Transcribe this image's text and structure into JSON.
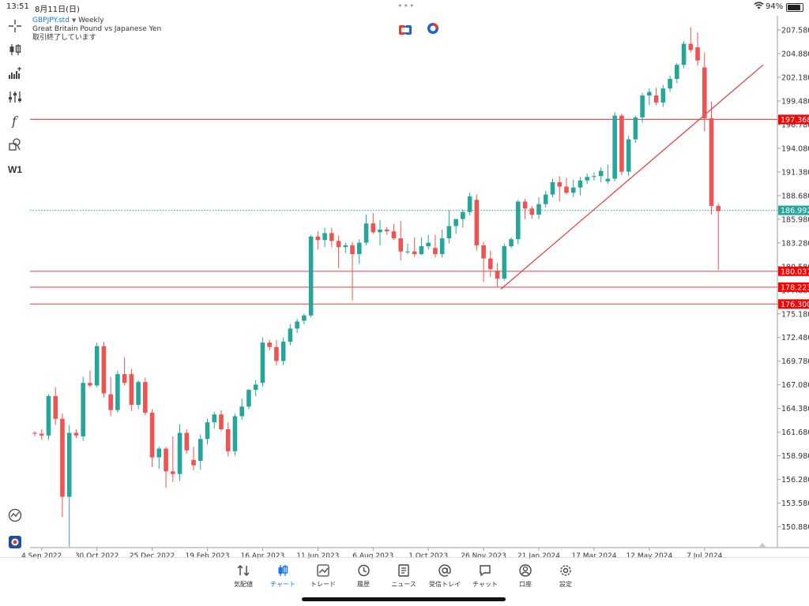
{
  "status_bar": {
    "time": "13:51",
    "date": "8月11日(日)",
    "battery": "94%",
    "battery_level": 0.94
  },
  "symbol": {
    "name": "GBPJPY.std",
    "timeframe": "Weekly",
    "description": "Great Britain Pound vs Japanese Yen",
    "market_status": "取引終了しています"
  },
  "toolbar": {
    "items": [
      {
        "name": "crosshair-icon"
      },
      {
        "name": "chart-type-icon"
      },
      {
        "name": "indicators-icon"
      },
      {
        "name": "settings-sliders-icon"
      },
      {
        "name": "function-icon"
      },
      {
        "name": "objects-icon"
      }
    ],
    "timeframe_label": "W1"
  },
  "colors": {
    "bull": "#26a69a",
    "bear": "#ef5350",
    "hline": "#f05050",
    "trendline": "#e53935",
    "price_line": "#26a69a",
    "accent": "#1a73e8",
    "price_label_bg": "#ff0000"
  },
  "chart_data": {
    "type": "candlestick",
    "ylim": [
      148.5,
      209.2
    ],
    "y_ticks": [
      "207.580",
      "204.880",
      "202.180",
      "199.480",
      "196.780",
      "194.080",
      "191.380",
      "188.680",
      "185.980",
      "183.280",
      "180.580",
      "177.880",
      "175.180",
      "172.480",
      "169.780",
      "167.080",
      "164.380",
      "161.680",
      "158.980",
      "156.280",
      "153.580",
      "150.880"
    ],
    "y_tick_values": [
      207.58,
      204.88,
      202.18,
      199.48,
      196.78,
      194.08,
      191.38,
      188.68,
      185.98,
      183.28,
      180.58,
      177.88,
      175.18,
      172.48,
      169.78,
      167.08,
      164.38,
      161.68,
      158.98,
      156.28,
      153.58,
      150.88
    ],
    "x_ticks": [
      "4 Sep 2022",
      "30 Oct 2022",
      "25 Dec 2022",
      "19 Feb 2023",
      "16 Apr 2023",
      "11 Jun 2023",
      "6 Aug 2023",
      "1 Oct 2023",
      "26 Nov 2023",
      "21 Jan 2024",
      "17 Mar 2024",
      "12 May 2024",
      "7 Jul 2024"
    ],
    "x_tick_index": [
      1,
      9,
      17,
      25,
      33,
      41,
      49,
      57,
      65,
      73,
      81,
      89,
      97
    ],
    "current_price": "186.992",
    "current_price_value": 186.992,
    "horizontal_lines": [
      {
        "label": "197.368",
        "value": 197.368
      },
      {
        "label": "180.037",
        "value": 180.037
      },
      {
        "label": "178.223",
        "value": 178.223
      },
      {
        "label": "176.300",
        "value": 176.3
      }
    ],
    "trendline": {
      "from": {
        "index": 67.5,
        "value": 178.0
      },
      "to": {
        "index": 105.5,
        "value": 203.6
      }
    },
    "candles": [
      [
        161.6,
        161.8,
        161.2,
        161.5
      ],
      [
        161.5,
        162.0,
        160.8,
        161.3
      ],
      [
        161.3,
        166.0,
        160.8,
        165.8
      ],
      [
        165.8,
        166.8,
        162.5,
        163.2
      ],
      [
        163.2,
        163.8,
        152.0,
        154.3
      ],
      [
        154.3,
        162.5,
        148.6,
        161.6
      ],
      [
        161.6,
        162.0,
        161.0,
        161.3
      ],
      [
        161.2,
        168.0,
        160.7,
        167.3
      ],
      [
        167.3,
        168.7,
        166.8,
        167.0
      ],
      [
        167.0,
        171.9,
        166.8,
        171.5
      ],
      [
        171.5,
        172.0,
        165.6,
        166.1
      ],
      [
        166.0,
        168.0,
        163.5,
        164.2
      ],
      [
        164.2,
        168.7,
        163.9,
        168.3
      ],
      [
        168.3,
        170.2,
        167.0,
        167.3
      ],
      [
        168.3,
        168.9,
        164.1,
        164.8
      ],
      [
        164.8,
        167.6,
        164.3,
        167.4
      ],
      [
        167.4,
        167.9,
        163.6,
        163.9
      ],
      [
        163.9,
        164.3,
        157.7,
        158.8
      ],
      [
        158.8,
        160.0,
        157.5,
        159.8
      ],
      [
        159.8,
        160.0,
        155.3,
        157.2
      ],
      [
        157.2,
        161.2,
        156.0,
        156.9
      ],
      [
        156.9,
        162.6,
        156.1,
        161.6
      ],
      [
        161.6,
        162.0,
        159.2,
        159.6
      ],
      [
        158.5,
        160.0,
        157.3,
        157.9
      ],
      [
        158.4,
        161.4,
        157.4,
        160.9
      ],
      [
        160.9,
        163.2,
        160.3,
        162.8
      ],
      [
        162.8,
        164.0,
        162.1,
        163.7
      ],
      [
        163.7,
        164.2,
        161.8,
        162.0
      ],
      [
        162.0,
        162.8,
        158.9,
        159.5
      ],
      [
        159.5,
        163.8,
        159.0,
        163.5
      ],
      [
        163.5,
        165.5,
        163.1,
        164.6
      ],
      [
        164.6,
        166.6,
        164.3,
        166.5
      ],
      [
        166.5,
        167.6,
        165.8,
        167.1
      ],
      [
        167.3,
        172.5,
        166.9,
        171.9
      ],
      [
        171.9,
        172.2,
        171.0,
        171.4
      ],
      [
        171.4,
        172.2,
        169.3,
        169.8
      ],
      [
        169.8,
        172.5,
        169.3,
        172.0
      ],
      [
        172.0,
        174.0,
        171.6,
        173.5
      ],
      [
        173.5,
        174.6,
        173.0,
        174.3
      ],
      [
        174.4,
        175.2,
        174.0,
        175.0
      ],
      [
        175.0,
        184.2,
        174.8,
        184.0
      ],
      [
        184.0,
        184.6,
        182.5,
        183.6
      ],
      [
        183.6,
        185.0,
        182.8,
        184.4
      ],
      [
        184.4,
        185.0,
        182.8,
        183.5
      ],
      [
        183.5,
        184.1,
        180.4,
        182.8
      ],
      [
        182.8,
        183.3,
        182.1,
        183.0
      ],
      [
        183.0,
        183.4,
        176.7,
        182.0
      ],
      [
        182.0,
        183.7,
        180.9,
        183.3
      ],
      [
        183.3,
        186.5,
        183.0,
        185.5
      ],
      [
        185.5,
        186.7,
        184.3,
        184.5
      ],
      [
        184.5,
        185.9,
        183.0,
        184.8
      ],
      [
        184.8,
        185.1,
        184.2,
        184.6
      ],
      [
        184.6,
        185.4,
        183.6,
        183.8
      ],
      [
        183.8,
        185.8,
        181.3,
        182.3
      ],
      [
        182.3,
        183.2,
        182.0,
        182.3
      ],
      [
        182.3,
        183.9,
        181.7,
        182.0
      ],
      [
        182.0,
        183.9,
        181.9,
        182.9
      ],
      [
        182.9,
        184.2,
        182.5,
        183.3
      ],
      [
        182.7,
        184.2,
        181.6,
        182.0
      ],
      [
        182.0,
        184.8,
        181.6,
        183.8
      ],
      [
        183.8,
        187.0,
        183.2,
        185.2
      ],
      [
        185.2,
        186.0,
        184.3,
        186.0
      ],
      [
        186.0,
        187.1,
        185.0,
        186.8
      ],
      [
        186.8,
        189.0,
        186.4,
        188.6
      ],
      [
        188.2,
        188.8,
        182.4,
        183.0
      ],
      [
        183.0,
        183.4,
        178.8,
        181.5
      ],
      [
        181.5,
        182.4,
        179.4,
        180.3
      ],
      [
        180.1,
        181.0,
        178.2,
        179.2
      ],
      [
        179.2,
        183.2,
        179.0,
        182.9
      ],
      [
        182.9,
        183.9,
        182.7,
        183.7
      ],
      [
        183.7,
        188.2,
        183.1,
        188.0
      ],
      [
        188.0,
        188.3,
        186.0,
        187.2
      ],
      [
        187.2,
        187.5,
        186.0,
        186.5
      ],
      [
        186.5,
        188.5,
        186.0,
        187.7
      ],
      [
        187.7,
        189.2,
        187.3,
        188.8
      ],
      [
        188.8,
        190.6,
        188.5,
        190.2
      ],
      [
        190.2,
        190.9,
        188.0,
        189.7
      ],
      [
        189.7,
        190.7,
        188.8,
        189.0
      ],
      [
        189.0,
        190.5,
        188.5,
        189.6
      ],
      [
        189.6,
        190.8,
        188.7,
        190.4
      ],
      [
        190.4,
        191.2,
        190.0,
        190.8
      ],
      [
        190.8,
        191.3,
        190.4,
        190.9
      ],
      [
        190.9,
        191.9,
        190.2,
        191.5
      ],
      [
        190.3,
        192.2,
        190.0,
        190.6
      ],
      [
        190.6,
        198.2,
        190.3,
        197.8
      ],
      [
        197.8,
        198.0,
        191.0,
        191.4
      ],
      [
        191.4,
        195.5,
        190.9,
        195.1
      ],
      [
        195.1,
        197.8,
        194.7,
        197.6
      ],
      [
        197.6,
        200.4,
        197.0,
        200.1
      ],
      [
        200.1,
        200.9,
        199.0,
        200.5
      ],
      [
        200.1,
        201.0,
        199.0,
        199.3
      ],
      [
        199.3,
        201.3,
        198.8,
        200.9
      ],
      [
        200.9,
        202.4,
        200.5,
        202.0
      ],
      [
        202.0,
        203.8,
        201.5,
        203.6
      ],
      [
        203.6,
        206.3,
        203.2,
        206.0
      ],
      [
        206.0,
        207.9,
        205.0,
        205.3
      ],
      [
        205.6,
        207.3,
        203.5,
        204.1
      ],
      [
        203.3,
        205.0,
        196.0,
        197.5
      ],
      [
        197.5,
        199.4,
        186.5,
        187.5
      ],
      [
        187.5,
        187.8,
        180.2,
        186.9
      ]
    ]
  },
  "tabs": [
    {
      "label": "気配値",
      "icon": "quotes-icon"
    },
    {
      "label": "チャート",
      "icon": "candles-icon",
      "active": true
    },
    {
      "label": "トレード",
      "icon": "trade-icon"
    },
    {
      "label": "履歴",
      "icon": "history-icon"
    },
    {
      "label": "ニュース",
      "icon": "news-icon"
    },
    {
      "label": "受信トレイ",
      "icon": "mailbox-icon"
    },
    {
      "label": "チャット",
      "icon": "chat-icon"
    },
    {
      "label": "口座",
      "icon": "account-icon"
    },
    {
      "label": "設定",
      "icon": "settings-icon"
    }
  ]
}
